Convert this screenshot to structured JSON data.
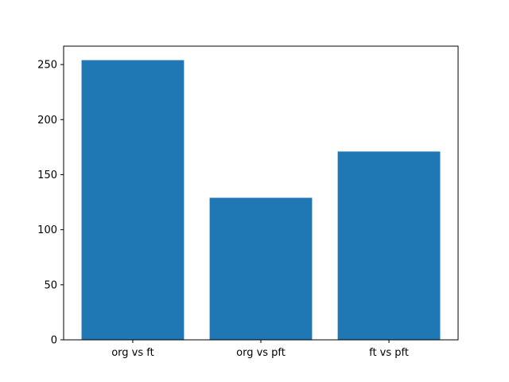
{
  "chart_data": {
    "type": "bar",
    "categories": [
      "org vs ft",
      "org vs pft",
      "ft vs pft"
    ],
    "values": [
      254,
      129,
      171
    ],
    "color": "#1f77b4",
    "ylim": [
      0,
      266.7
    ],
    "yticks": [
      0,
      50,
      100,
      150,
      200,
      250
    ],
    "grid": false
  }
}
